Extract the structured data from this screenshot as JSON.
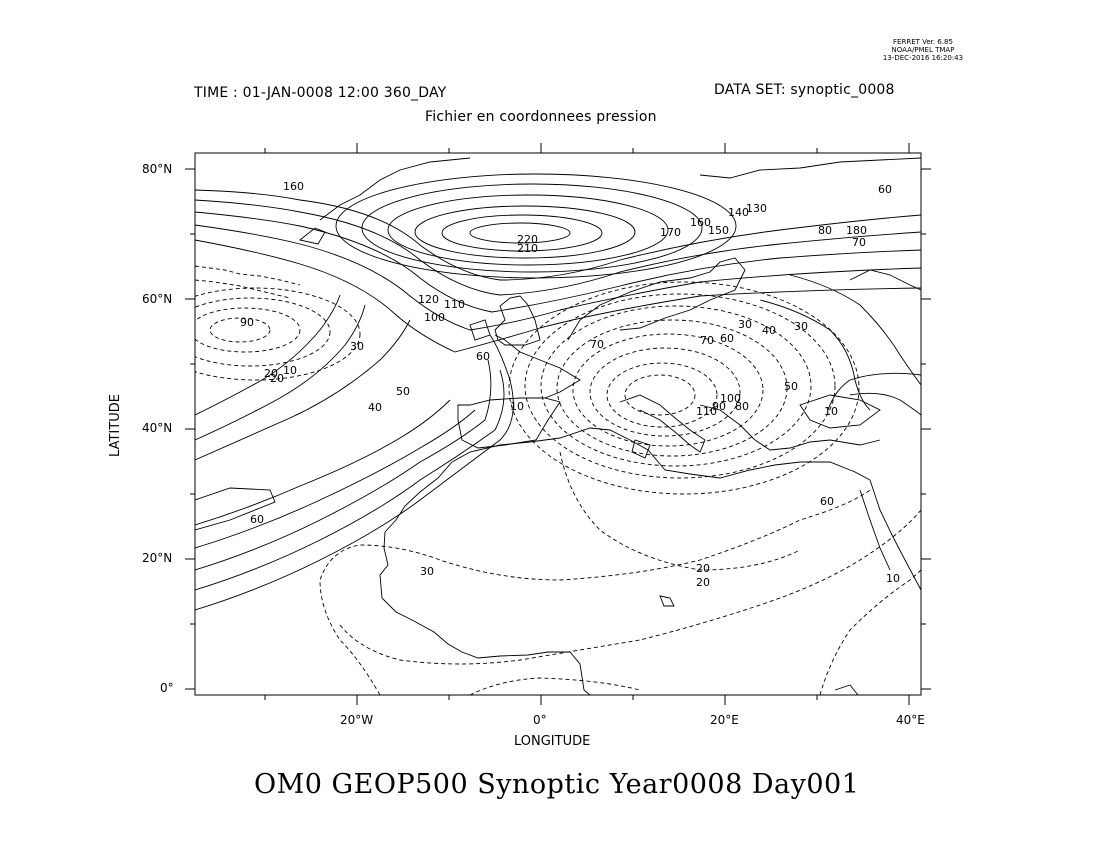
{
  "ferret_info": {
    "version": "FERRET Ver. 6.85",
    "org": "NOAA/PMEL TMAP",
    "timestamp": "13-DEC-2016 16:20:43"
  },
  "header": {
    "time": "TIME : 01-JAN-0008 12:00 360_DAY",
    "dataset": "DATA SET: synoptic_0008",
    "subtitle": "Fichier en coordonnees pression"
  },
  "axes": {
    "xlabel": "LONGITUDE",
    "ylabel": "LATITUDE",
    "lat_ticks": [
      "80°N",
      "60°N",
      "40°N",
      "20°N",
      "0°"
    ],
    "lon_ticks": [
      "20°W",
      "0°",
      "20°E",
      "40°E"
    ]
  },
  "map": {
    "lon_range": [
      -37,
      42
    ],
    "lat_range": [
      -1,
      82
    ],
    "contour_labels": [
      "160",
      "220",
      "210",
      "170",
      "160",
      "150",
      "140",
      "130",
      "80",
      "60",
      "70",
      "180",
      "120",
      "110",
      "100",
      "90",
      "70",
      "60",
      "50",
      "40",
      "30",
      "20",
      "10",
      "60",
      "30",
      "20",
      "10",
      "50",
      "40",
      "10",
      "30",
      "60",
      "70",
      "80",
      "90",
      "100",
      "110",
      "60",
      "20",
      "30",
      "20",
      "10"
    ]
  },
  "footer": {
    "title": "OM0 GEOP500 Synoptic Year0008 Day001"
  }
}
